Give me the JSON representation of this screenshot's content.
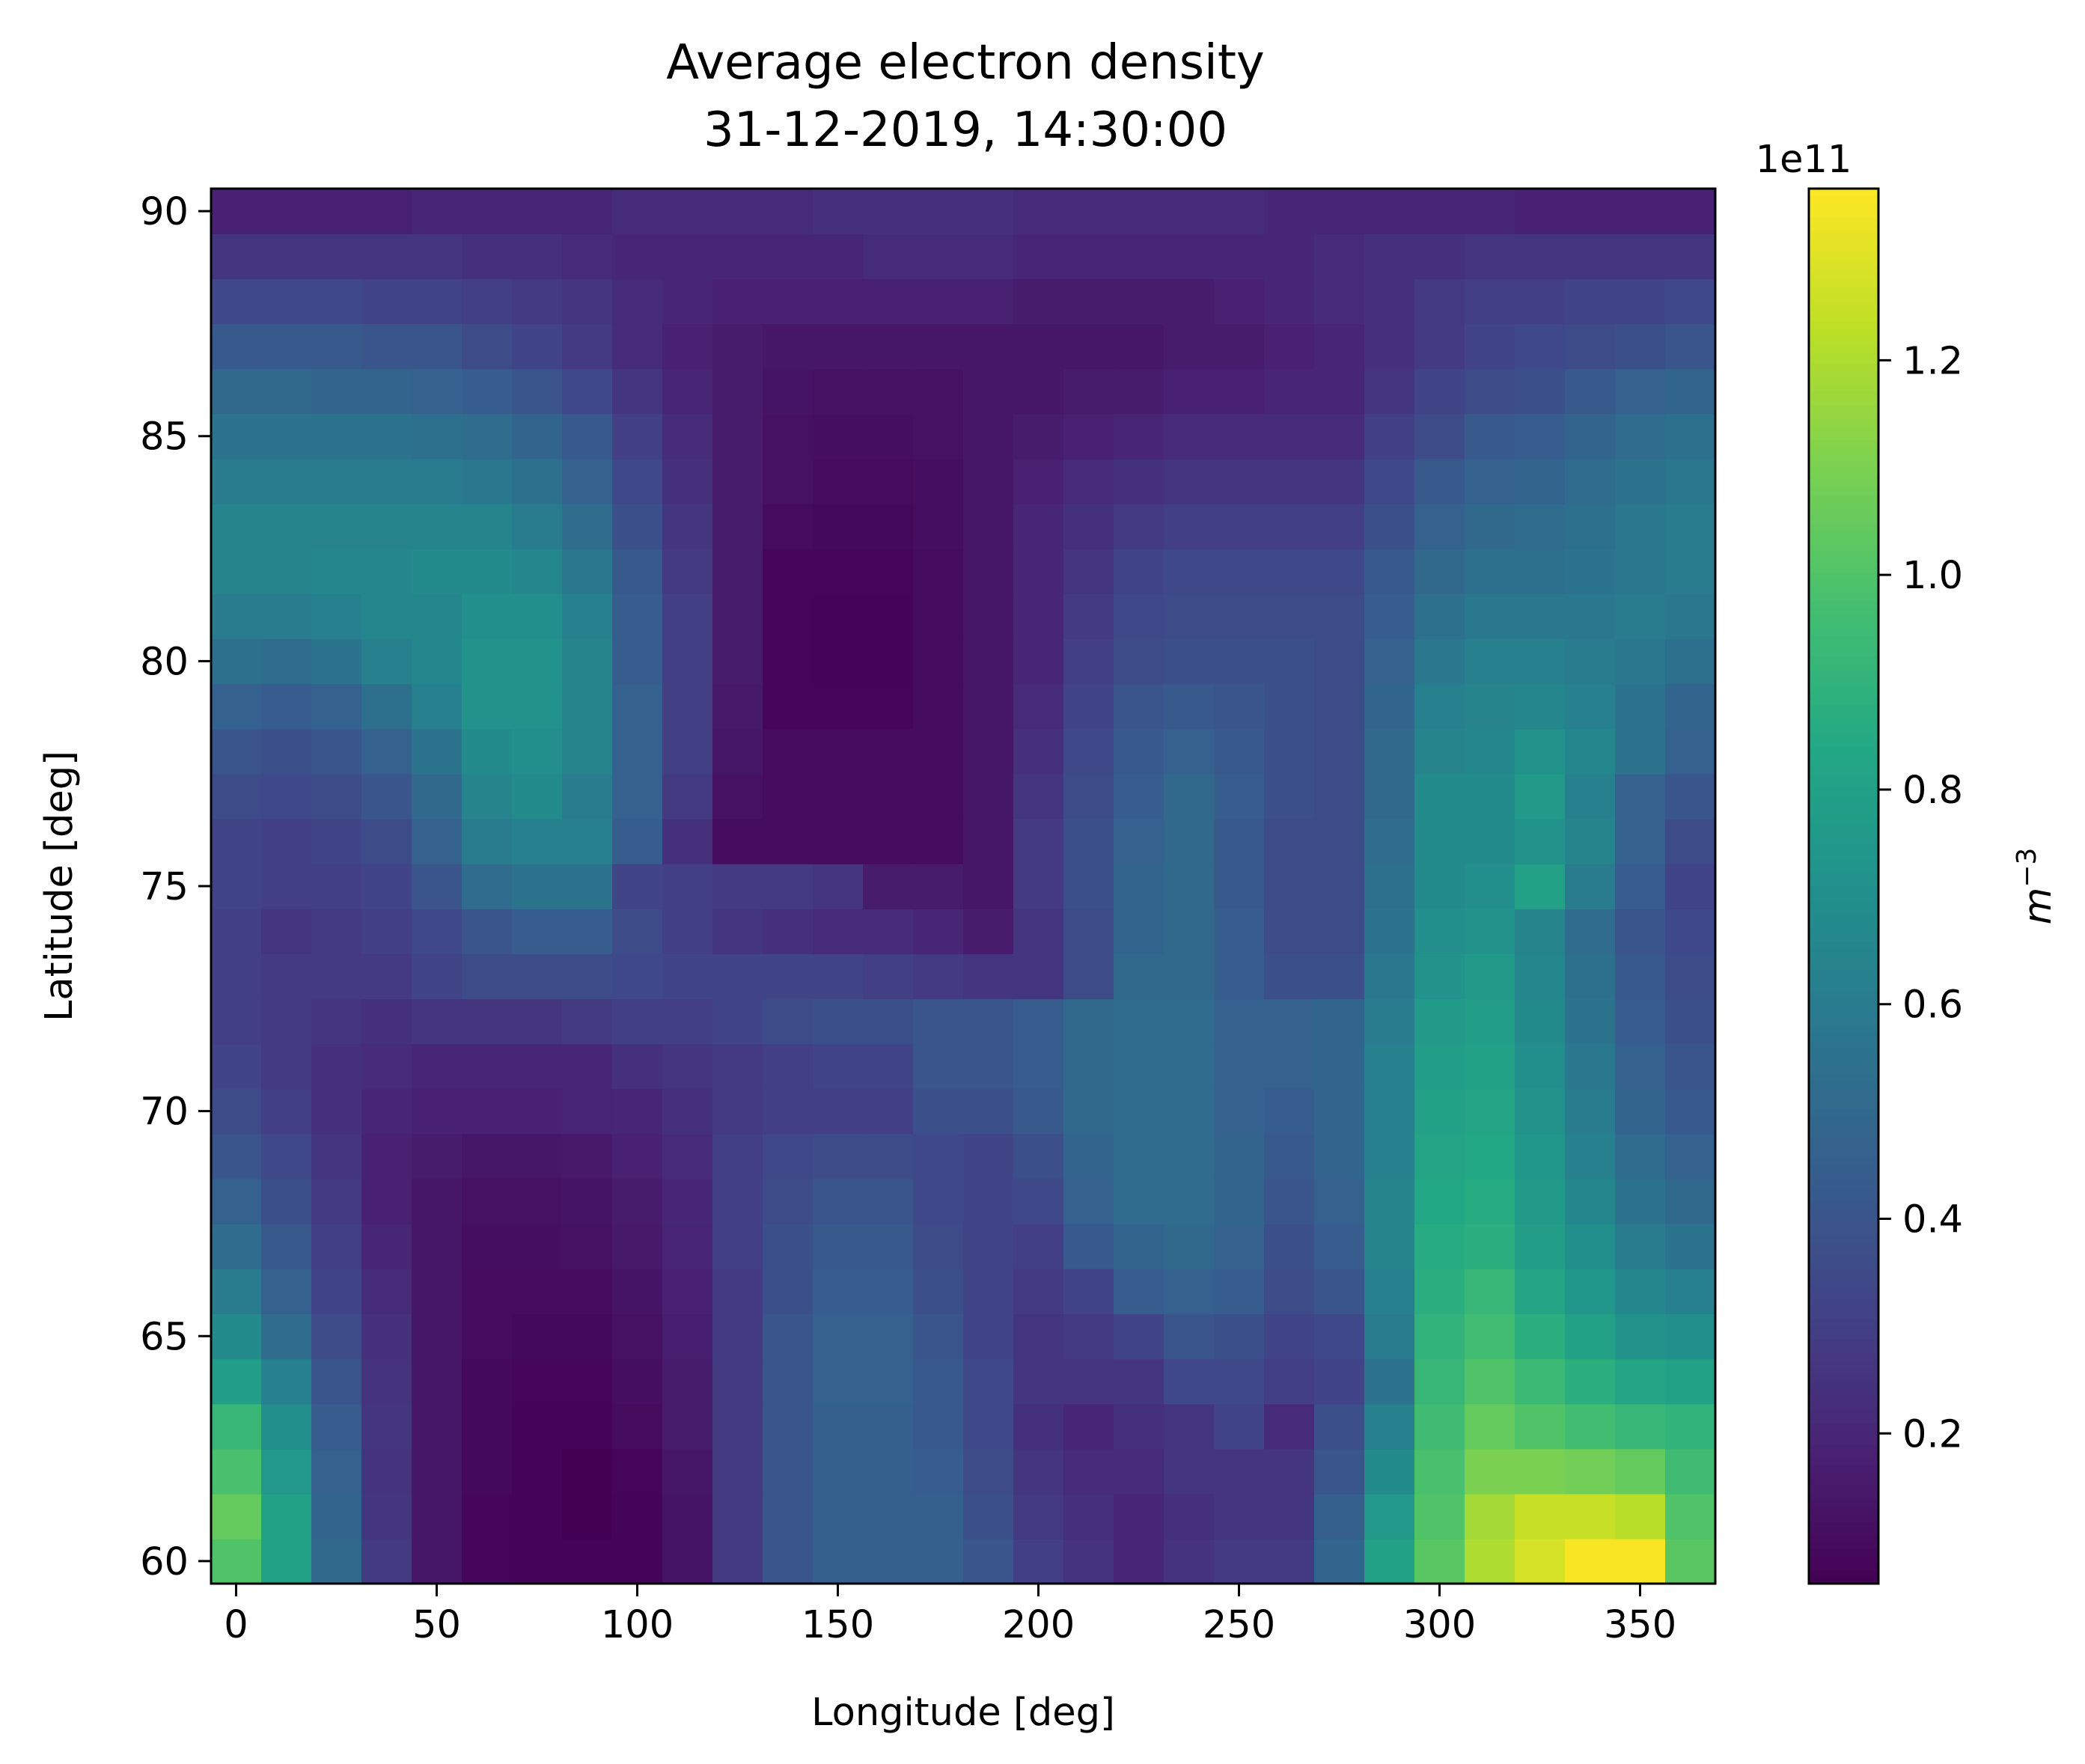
{
  "chart_data": {
    "type": "heatmap",
    "title": [
      "Average electron density",
      "31-12-2019, 14:30:00"
    ],
    "xlabel": "Longitude [deg]",
    "ylabel": "Latitude [deg]",
    "colorbar_label": "m⁻³",
    "colorbar_unit": "m",
    "colorbar_exponent": "−3",
    "colorbar_offset": "1e11",
    "colormap": "viridis",
    "x_ticks": [
      0,
      50,
      100,
      150,
      200,
      250,
      300,
      350
    ],
    "y_ticks": [
      60,
      65,
      70,
      75,
      80,
      85,
      90
    ],
    "colorbar_ticks": [
      "0.2",
      "0.4",
      "0.6",
      "0.8",
      "1.0",
      "1.2"
    ],
    "colorbar_range": [
      0.06,
      1.36
    ],
    "x_cell_centers": [
      0,
      12.5,
      25,
      37.5,
      50,
      62.5,
      75,
      87.5,
      100,
      112.5,
      125,
      137.5,
      150,
      162.5,
      175,
      187.5,
      200,
      212.5,
      225,
      237.5,
      250,
      262.5,
      275,
      287.5,
      300,
      312.5,
      325,
      337.5,
      350,
      362.5
    ],
    "y_cell_centers": [
      60,
      61,
      62,
      63,
      64,
      65,
      66,
      67,
      68,
      69,
      70,
      71,
      72,
      73,
      74,
      75,
      76,
      77,
      78,
      79,
      80,
      81,
      82,
      83,
      84,
      85,
      86,
      87,
      88,
      89,
      90
    ],
    "xlim": [
      -6.25,
      368.75
    ],
    "ylim": [
      59.5,
      90.5
    ],
    "values_units": "1e11 m^-3",
    "values": [
      [
        1.0,
        0.8,
        0.5,
        0.28,
        0.14,
        0.08,
        0.07,
        0.07,
        0.07,
        0.13,
        0.28,
        0.4,
        0.45,
        0.45,
        0.45,
        0.4,
        0.3,
        0.25,
        0.2,
        0.25,
        0.28,
        0.28,
        0.48,
        0.8,
        1.02,
        1.2,
        1.28,
        1.35,
        1.35,
        1.02
      ],
      [
        1.05,
        0.8,
        0.48,
        0.26,
        0.14,
        0.08,
        0.07,
        0.06,
        0.07,
        0.13,
        0.28,
        0.4,
        0.45,
        0.45,
        0.45,
        0.38,
        0.28,
        0.24,
        0.2,
        0.24,
        0.26,
        0.26,
        0.45,
        0.75,
        1.0,
        1.18,
        1.25,
        1.25,
        1.22,
        1.0
      ],
      [
        0.98,
        0.75,
        0.46,
        0.25,
        0.14,
        0.09,
        0.07,
        0.06,
        0.08,
        0.14,
        0.28,
        0.4,
        0.45,
        0.45,
        0.44,
        0.36,
        0.26,
        0.22,
        0.22,
        0.26,
        0.26,
        0.26,
        0.4,
        0.68,
        0.98,
        1.1,
        1.1,
        1.08,
        1.05,
        0.95
      ],
      [
        0.92,
        0.7,
        0.44,
        0.26,
        0.14,
        0.09,
        0.07,
        0.07,
        0.1,
        0.16,
        0.28,
        0.4,
        0.45,
        0.45,
        0.42,
        0.34,
        0.24,
        0.2,
        0.24,
        0.26,
        0.32,
        0.22,
        0.38,
        0.62,
        0.95,
        1.05,
        1.0,
        0.96,
        0.92,
        0.9
      ],
      [
        0.78,
        0.62,
        0.4,
        0.25,
        0.14,
        0.09,
        0.08,
        0.08,
        0.11,
        0.16,
        0.28,
        0.4,
        0.46,
        0.46,
        0.42,
        0.34,
        0.26,
        0.26,
        0.26,
        0.34,
        0.34,
        0.3,
        0.32,
        0.55,
        0.92,
        1.0,
        0.94,
        0.88,
        0.82,
        0.8
      ],
      [
        0.68,
        0.52,
        0.36,
        0.24,
        0.14,
        0.1,
        0.09,
        0.09,
        0.12,
        0.17,
        0.28,
        0.4,
        0.46,
        0.46,
        0.4,
        0.32,
        0.26,
        0.28,
        0.32,
        0.4,
        0.38,
        0.32,
        0.34,
        0.6,
        0.9,
        0.96,
        0.88,
        0.8,
        0.72,
        0.7
      ],
      [
        0.6,
        0.46,
        0.32,
        0.22,
        0.14,
        0.1,
        0.1,
        0.1,
        0.13,
        0.18,
        0.28,
        0.38,
        0.44,
        0.44,
        0.38,
        0.32,
        0.28,
        0.32,
        0.44,
        0.46,
        0.44,
        0.36,
        0.4,
        0.62,
        0.88,
        0.92,
        0.82,
        0.74,
        0.66,
        0.62
      ],
      [
        0.52,
        0.42,
        0.3,
        0.2,
        0.14,
        0.11,
        0.11,
        0.12,
        0.15,
        0.19,
        0.3,
        0.38,
        0.42,
        0.42,
        0.36,
        0.32,
        0.3,
        0.42,
        0.48,
        0.5,
        0.46,
        0.38,
        0.44,
        0.64,
        0.86,
        0.88,
        0.78,
        0.7,
        0.6,
        0.56
      ],
      [
        0.46,
        0.38,
        0.28,
        0.18,
        0.14,
        0.12,
        0.12,
        0.13,
        0.16,
        0.2,
        0.3,
        0.36,
        0.4,
        0.4,
        0.34,
        0.32,
        0.34,
        0.46,
        0.52,
        0.52,
        0.48,
        0.4,
        0.46,
        0.64,
        0.84,
        0.86,
        0.76,
        0.66,
        0.56,
        0.5
      ],
      [
        0.4,
        0.34,
        0.26,
        0.18,
        0.16,
        0.14,
        0.14,
        0.15,
        0.18,
        0.22,
        0.3,
        0.34,
        0.36,
        0.36,
        0.34,
        0.32,
        0.38,
        0.48,
        0.52,
        0.52,
        0.48,
        0.42,
        0.48,
        0.62,
        0.82,
        0.84,
        0.74,
        0.62,
        0.52,
        0.46
      ],
      [
        0.36,
        0.3,
        0.24,
        0.2,
        0.18,
        0.18,
        0.18,
        0.19,
        0.2,
        0.24,
        0.28,
        0.3,
        0.3,
        0.3,
        0.38,
        0.38,
        0.42,
        0.5,
        0.52,
        0.52,
        0.46,
        0.44,
        0.48,
        0.62,
        0.8,
        0.82,
        0.72,
        0.6,
        0.48,
        0.42
      ],
      [
        0.32,
        0.28,
        0.24,
        0.22,
        0.2,
        0.2,
        0.2,
        0.2,
        0.24,
        0.26,
        0.28,
        0.3,
        0.32,
        0.32,
        0.4,
        0.4,
        0.44,
        0.5,
        0.52,
        0.52,
        0.46,
        0.46,
        0.48,
        0.62,
        0.78,
        0.8,
        0.7,
        0.58,
        0.46,
        0.4
      ],
      [
        0.3,
        0.28,
        0.26,
        0.24,
        0.26,
        0.26,
        0.26,
        0.28,
        0.3,
        0.3,
        0.32,
        0.36,
        0.38,
        0.38,
        0.4,
        0.4,
        0.44,
        0.5,
        0.52,
        0.52,
        0.46,
        0.46,
        0.48,
        0.6,
        0.76,
        0.78,
        0.68,
        0.56,
        0.44,
        0.38
      ],
      [
        0.3,
        0.28,
        0.28,
        0.28,
        0.32,
        0.36,
        0.36,
        0.36,
        0.34,
        0.32,
        0.32,
        0.32,
        0.32,
        0.3,
        0.28,
        0.26,
        0.26,
        0.36,
        0.5,
        0.5,
        0.44,
        0.38,
        0.38,
        0.58,
        0.72,
        0.76,
        0.66,
        0.54,
        0.42,
        0.36
      ],
      [
        0.3,
        0.26,
        0.28,
        0.3,
        0.34,
        0.4,
        0.44,
        0.44,
        0.36,
        0.3,
        0.26,
        0.24,
        0.22,
        0.22,
        0.2,
        0.16,
        0.26,
        0.36,
        0.48,
        0.5,
        0.44,
        0.36,
        0.36,
        0.56,
        0.7,
        0.72,
        0.64,
        0.52,
        0.4,
        0.34
      ],
      [
        0.32,
        0.3,
        0.3,
        0.32,
        0.4,
        0.52,
        0.56,
        0.56,
        0.32,
        0.3,
        0.28,
        0.28,
        0.26,
        0.16,
        0.16,
        0.14,
        0.28,
        0.38,
        0.48,
        0.5,
        0.42,
        0.36,
        0.36,
        0.54,
        0.68,
        0.7,
        0.8,
        0.6,
        0.44,
        0.32
      ],
      [
        0.32,
        0.3,
        0.32,
        0.36,
        0.46,
        0.6,
        0.62,
        0.62,
        0.44,
        0.24,
        0.1,
        0.1,
        0.1,
        0.1,
        0.1,
        0.14,
        0.28,
        0.38,
        0.46,
        0.5,
        0.42,
        0.36,
        0.36,
        0.52,
        0.68,
        0.68,
        0.72,
        0.64,
        0.46,
        0.36
      ],
      [
        0.36,
        0.34,
        0.36,
        0.4,
        0.5,
        0.64,
        0.68,
        0.6,
        0.46,
        0.28,
        0.12,
        0.1,
        0.1,
        0.1,
        0.1,
        0.14,
        0.26,
        0.36,
        0.44,
        0.5,
        0.44,
        0.38,
        0.36,
        0.5,
        0.68,
        0.68,
        0.76,
        0.62,
        0.46,
        0.4
      ],
      [
        0.4,
        0.38,
        0.4,
        0.46,
        0.56,
        0.68,
        0.7,
        0.64,
        0.46,
        0.3,
        0.14,
        0.1,
        0.1,
        0.1,
        0.1,
        0.14,
        0.24,
        0.34,
        0.42,
        0.46,
        0.42,
        0.38,
        0.36,
        0.5,
        0.64,
        0.66,
        0.72,
        0.66,
        0.56,
        0.46
      ],
      [
        0.46,
        0.44,
        0.46,
        0.54,
        0.62,
        0.72,
        0.72,
        0.64,
        0.46,
        0.3,
        0.15,
        0.08,
        0.08,
        0.08,
        0.1,
        0.14,
        0.22,
        0.32,
        0.4,
        0.42,
        0.4,
        0.38,
        0.36,
        0.48,
        0.62,
        0.64,
        0.66,
        0.62,
        0.56,
        0.48
      ],
      [
        0.54,
        0.52,
        0.56,
        0.62,
        0.66,
        0.72,
        0.72,
        0.64,
        0.44,
        0.3,
        0.16,
        0.08,
        0.07,
        0.07,
        0.1,
        0.14,
        0.2,
        0.3,
        0.36,
        0.38,
        0.38,
        0.38,
        0.36,
        0.46,
        0.58,
        0.62,
        0.62,
        0.6,
        0.58,
        0.54
      ],
      [
        0.6,
        0.6,
        0.62,
        0.66,
        0.66,
        0.7,
        0.7,
        0.62,
        0.44,
        0.3,
        0.16,
        0.08,
        0.07,
        0.07,
        0.1,
        0.14,
        0.2,
        0.28,
        0.34,
        0.36,
        0.36,
        0.36,
        0.36,
        0.44,
        0.54,
        0.58,
        0.58,
        0.58,
        0.6,
        0.58
      ],
      [
        0.64,
        0.64,
        0.66,
        0.66,
        0.68,
        0.68,
        0.66,
        0.58,
        0.42,
        0.28,
        0.16,
        0.08,
        0.08,
        0.08,
        0.1,
        0.14,
        0.2,
        0.26,
        0.32,
        0.34,
        0.34,
        0.34,
        0.34,
        0.42,
        0.5,
        0.54,
        0.54,
        0.56,
        0.58,
        0.6
      ],
      [
        0.64,
        0.64,
        0.64,
        0.64,
        0.64,
        0.64,
        0.6,
        0.52,
        0.38,
        0.26,
        0.16,
        0.1,
        0.09,
        0.09,
        0.11,
        0.14,
        0.2,
        0.24,
        0.28,
        0.3,
        0.3,
        0.3,
        0.3,
        0.38,
        0.46,
        0.5,
        0.52,
        0.54,
        0.58,
        0.6
      ],
      [
        0.6,
        0.6,
        0.6,
        0.6,
        0.6,
        0.58,
        0.54,
        0.46,
        0.34,
        0.24,
        0.16,
        0.12,
        0.1,
        0.1,
        0.11,
        0.14,
        0.18,
        0.22,
        0.24,
        0.26,
        0.26,
        0.26,
        0.26,
        0.34,
        0.42,
        0.46,
        0.48,
        0.52,
        0.56,
        0.58
      ],
      [
        0.56,
        0.56,
        0.56,
        0.56,
        0.54,
        0.52,
        0.48,
        0.42,
        0.3,
        0.22,
        0.16,
        0.12,
        0.11,
        0.11,
        0.12,
        0.14,
        0.16,
        0.18,
        0.2,
        0.22,
        0.22,
        0.22,
        0.22,
        0.3,
        0.36,
        0.42,
        0.44,
        0.48,
        0.52,
        0.54
      ],
      [
        0.5,
        0.5,
        0.48,
        0.48,
        0.46,
        0.44,
        0.4,
        0.34,
        0.26,
        0.2,
        0.16,
        0.13,
        0.12,
        0.12,
        0.12,
        0.14,
        0.14,
        0.16,
        0.16,
        0.18,
        0.18,
        0.2,
        0.2,
        0.26,
        0.32,
        0.36,
        0.38,
        0.42,
        0.46,
        0.48
      ],
      [
        0.42,
        0.42,
        0.42,
        0.4,
        0.4,
        0.36,
        0.32,
        0.28,
        0.22,
        0.18,
        0.16,
        0.14,
        0.14,
        0.14,
        0.14,
        0.14,
        0.14,
        0.14,
        0.14,
        0.16,
        0.16,
        0.18,
        0.2,
        0.24,
        0.28,
        0.32,
        0.34,
        0.36,
        0.38,
        0.4
      ],
      [
        0.34,
        0.34,
        0.34,
        0.32,
        0.32,
        0.3,
        0.28,
        0.26,
        0.22,
        0.2,
        0.18,
        0.18,
        0.18,
        0.18,
        0.18,
        0.18,
        0.16,
        0.16,
        0.16,
        0.16,
        0.18,
        0.2,
        0.22,
        0.24,
        0.28,
        0.3,
        0.3,
        0.32,
        0.32,
        0.34
      ],
      [
        0.26,
        0.26,
        0.26,
        0.26,
        0.26,
        0.24,
        0.24,
        0.22,
        0.2,
        0.2,
        0.2,
        0.2,
        0.2,
        0.22,
        0.22,
        0.22,
        0.2,
        0.2,
        0.2,
        0.2,
        0.2,
        0.2,
        0.22,
        0.24,
        0.24,
        0.26,
        0.26,
        0.26,
        0.26,
        0.26
      ],
      [
        0.18,
        0.18,
        0.18,
        0.18,
        0.2,
        0.2,
        0.2,
        0.2,
        0.22,
        0.22,
        0.22,
        0.22,
        0.24,
        0.24,
        0.24,
        0.24,
        0.22,
        0.22,
        0.22,
        0.22,
        0.22,
        0.2,
        0.2,
        0.2,
        0.2,
        0.2,
        0.18,
        0.18,
        0.18,
        0.18
      ]
    ]
  }
}
